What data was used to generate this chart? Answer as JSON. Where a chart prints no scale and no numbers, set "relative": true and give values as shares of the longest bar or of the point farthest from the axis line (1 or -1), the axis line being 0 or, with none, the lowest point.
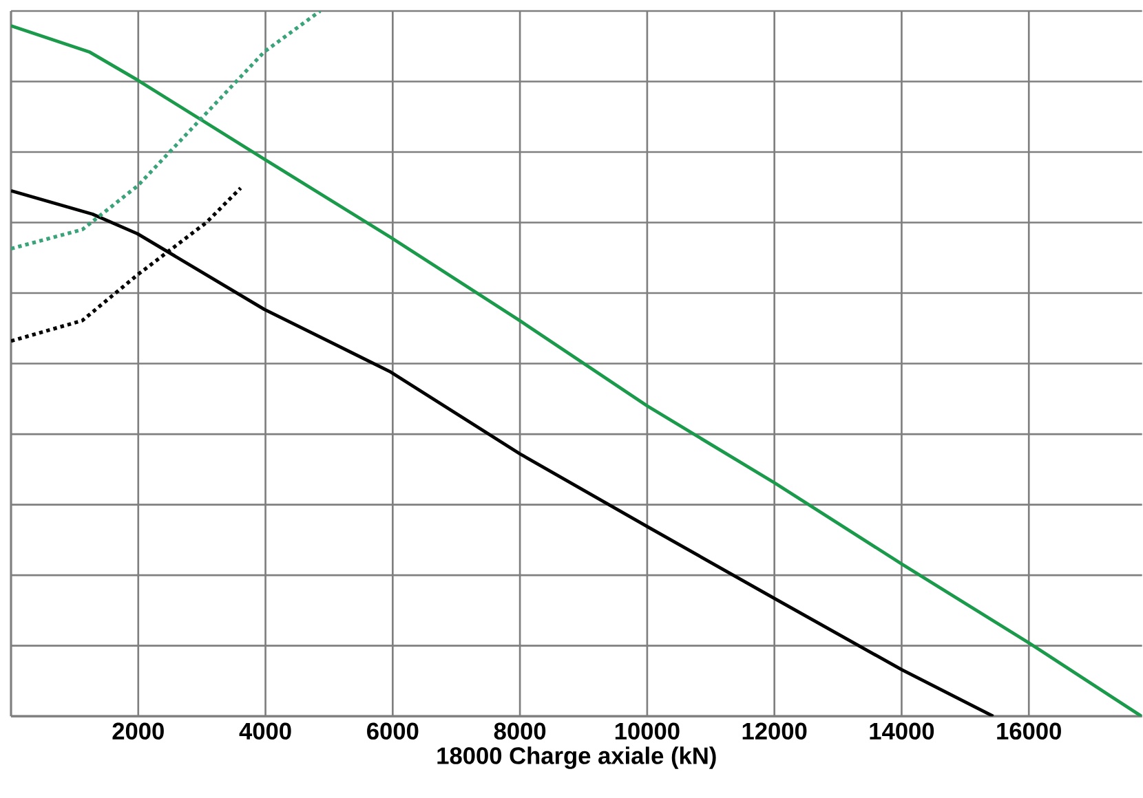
{
  "chart_data": {
    "type": "line",
    "relative": true,
    "xlabel": "18000 Charge axiale (kN)",
    "xlim": [
      0,
      17780
    ],
    "xticks": [
      2000,
      4000,
      6000,
      8000,
      10000,
      12000,
      14000,
      16000
    ],
    "grid": true,
    "tick_labels": "x",
    "series": [
      {
        "color": "#1a9a4a",
        "line_style": "solid",
        "x": [
          0,
          1230,
          1990,
          3980,
          5950,
          7980,
          10000,
          12000,
          14000,
          16000,
          17770
        ],
        "values": [
          0.979,
          0.942,
          0.902,
          0.79,
          0.68,
          0.562,
          0.44,
          0.331,
          0.216,
          0.104,
          0
        ]
      },
      {
        "color": "#000000",
        "line_style": "solid",
        "x": [
          0,
          1280,
          1990,
          3980,
          5950,
          8000,
          10000,
          12000,
          14000,
          15440
        ],
        "values": [
          0.745,
          0.712,
          0.684,
          0.577,
          0.489,
          0.372,
          0.269,
          0.167,
          0.066,
          0
        ]
      },
      {
        "color": "#3aa37a",
        "line_style": "dotted",
        "x": [
          0,
          1120,
          1990,
          3980,
          4860
        ],
        "values": [
          0.663,
          0.69,
          0.752,
          0.942,
          1.0
        ]
      },
      {
        "color": "#000000",
        "line_style": "dotted",
        "x": [
          0,
          1120,
          1990,
          3070,
          3610
        ],
        "values": [
          0.532,
          0.561,
          0.626,
          0.7,
          0.749
        ]
      }
    ]
  }
}
